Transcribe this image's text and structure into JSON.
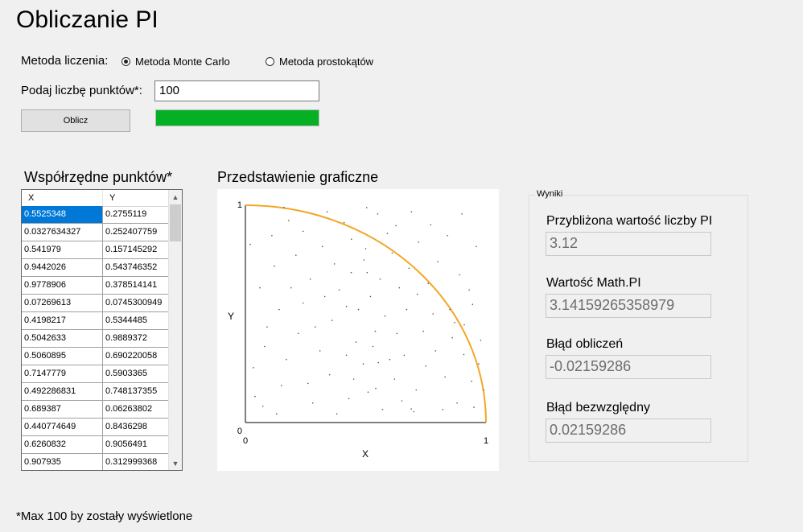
{
  "app": {
    "title": "Obliczanie PI"
  },
  "method": {
    "label": "Metoda liczenia:",
    "options": [
      {
        "label": "Metoda Monte Carlo",
        "checked": true
      },
      {
        "label": "Metoda prostokątów",
        "checked": false
      }
    ]
  },
  "points": {
    "label": "Podaj liczbę punktów*:",
    "value": "100"
  },
  "calc_button": {
    "label": "Oblicz"
  },
  "progress": {
    "fraction": 1.0,
    "color": "#06b025"
  },
  "coords": {
    "title": "Współrzędne punktów*",
    "columns": [
      "X",
      "Y"
    ],
    "rows": [
      [
        "0.5525348",
        "0.2755119"
      ],
      [
        "0.0327634327",
        "0.252407759"
      ],
      [
        "0.541979",
        "0.157145292"
      ],
      [
        "0.9442026",
        "0.543746352"
      ],
      [
        "0.9778906",
        "0.378514141"
      ],
      [
        "0.07269613",
        "0.0745300949"
      ],
      [
        "0.4198217",
        "0.5344485"
      ],
      [
        "0.5042633",
        "0.9889372"
      ],
      [
        "0.5060895",
        "0.690220058"
      ],
      [
        "0.7147779",
        "0.5903365"
      ],
      [
        "0.492286831",
        "0.748137355"
      ],
      [
        "0.689387",
        "0.06263802"
      ],
      [
        "0.440774649",
        "0.8436298"
      ],
      [
        "0.6260832",
        "0.9056491"
      ],
      [
        "0.907935",
        "0.312999368"
      ]
    ],
    "selected_row": 0,
    "scroll_up_icon": "triangle-up",
    "scroll_down_icon": "triangle-down"
  },
  "graph": {
    "title": "Przedstawienie graficzne",
    "x_label": "X",
    "y_label": "Y",
    "x_ticks": [
      "0",
      "1"
    ],
    "y_ticks": [
      "0",
      "1"
    ],
    "arc_color": "#f5a623",
    "point_color": "#555555",
    "points": [
      [
        0.5525348,
        0.2755119
      ],
      [
        0.0327634327,
        0.252407759
      ],
      [
        0.541979,
        0.157145292
      ],
      [
        0.9442026,
        0.543746352
      ],
      [
        0.9778906,
        0.378514141
      ],
      [
        0.07269613,
        0.0745300949
      ],
      [
        0.4198217,
        0.5344485
      ],
      [
        0.5042633,
        0.9889372
      ],
      [
        0.5060895,
        0.690220058
      ],
      [
        0.7147779,
        0.5903365
      ],
      [
        0.492286831,
        0.748137355
      ],
      [
        0.689387,
        0.06263802
      ],
      [
        0.440774649,
        0.8436298
      ],
      [
        0.6260832,
        0.9056491
      ],
      [
        0.907935,
        0.312999368
      ],
      [
        0.18,
        0.93
      ],
      [
        0.32,
        0.81
      ],
      [
        0.12,
        0.72
      ],
      [
        0.27,
        0.66
      ],
      [
        0.39,
        0.61
      ],
      [
        0.61,
        0.78
      ],
      [
        0.58,
        0.49
      ],
      [
        0.74,
        0.42
      ],
      [
        0.83,
        0.21
      ],
      [
        0.66,
        0.31
      ],
      [
        0.46,
        0.37
      ],
      [
        0.35,
        0.22
      ],
      [
        0.22,
        0.41
      ],
      [
        0.09,
        0.44
      ],
      [
        0.15,
        0.17
      ],
      [
        0.28,
        0.09
      ],
      [
        0.43,
        0.11
      ],
      [
        0.57,
        0.06
      ],
      [
        0.71,
        0.15
      ],
      [
        0.88,
        0.09
      ],
      [
        0.94,
        0.19
      ],
      [
        0.79,
        0.33
      ],
      [
        0.63,
        0.41
      ],
      [
        0.52,
        0.58
      ],
      [
        0.36,
        0.47
      ],
      [
        0.24,
        0.55
      ],
      [
        0.06,
        0.62
      ],
      [
        0.11,
        0.86
      ],
      [
        0.21,
        0.77
      ],
      [
        0.44,
        0.69
      ],
      [
        0.56,
        0.66
      ],
      [
        0.68,
        0.71
      ],
      [
        0.76,
        0.64
      ],
      [
        0.85,
        0.52
      ],
      [
        0.91,
        0.45
      ],
      [
        0.97,
        0.27
      ],
      [
        0.82,
        0.06
      ],
      [
        0.49,
        0.27
      ],
      [
        0.31,
        0.33
      ],
      [
        0.17,
        0.29
      ],
      [
        0.04,
        0.12
      ],
      [
        0.13,
        0.04
      ],
      [
        0.38,
        0.04
      ],
      [
        0.62,
        0.2
      ],
      [
        0.75,
        0.26
      ],
      [
        0.86,
        0.39
      ],
      [
        0.41,
        0.92
      ],
      [
        0.59,
        0.87
      ],
      [
        0.72,
        0.83
      ],
      [
        0.8,
        0.74
      ],
      [
        0.89,
        0.68
      ],
      [
        0.93,
        0.61
      ],
      [
        0.67,
        0.52
      ],
      [
        0.54,
        0.42
      ],
      [
        0.47,
        0.52
      ],
      [
        0.33,
        0.58
      ],
      [
        0.19,
        0.62
      ],
      [
        0.08,
        0.35
      ],
      [
        0.26,
        0.18
      ],
      [
        0.51,
        0.14
      ],
      [
        0.7,
        0.05
      ],
      [
        0.95,
        0.07
      ],
      [
        0.99,
        0.15
      ],
      [
        0.6,
        0.29
      ],
      [
        0.45,
        0.2
      ],
      [
        0.29,
        0.44
      ],
      [
        0.14,
        0.52
      ],
      [
        0.02,
        0.82
      ],
      [
        0.24,
        0.88
      ],
      [
        0.37,
        0.73
      ],
      [
        0.5,
        0.8
      ],
      [
        0.64,
        0.62
      ],
      [
        0.78,
        0.5
      ],
      [
        0.87,
        0.46
      ],
      [
        0.55,
        0.96
      ],
      [
        0.77,
        0.91
      ],
      [
        0.84,
        0.86
      ],
      [
        0.96,
        0.81
      ],
      [
        0.9,
        0.96
      ],
      [
        0.69,
        0.97
      ],
      [
        0.34,
        0.97
      ],
      [
        0.16,
        0.99
      ],
      [
        0.42,
        0.31
      ],
      [
        0.53,
        0.35
      ],
      [
        0.65,
        0.1
      ]
    ]
  },
  "results": {
    "group_title": "Wyniki",
    "approx_label": "Przybliżona wartość liczby PI",
    "approx_value": "3.12",
    "mathpi_label": "Wartość Math.PI",
    "mathpi_value": "3.14159265358979",
    "error_label": "Błąd obliczeń",
    "error_value": "-0.02159286",
    "abs_error_label": "Błąd bezwzględny",
    "abs_error_value": "0.02159286"
  },
  "footnote": "*Max 100 by zostały wyświetlone"
}
